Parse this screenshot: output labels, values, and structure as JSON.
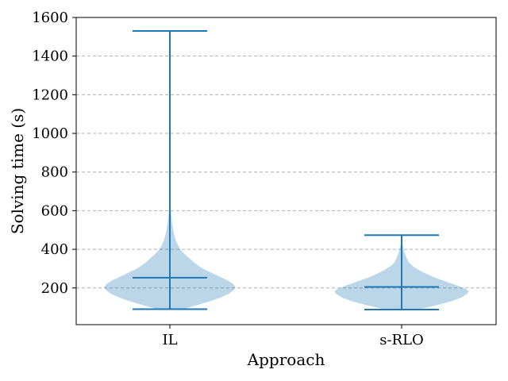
{
  "chart_data": {
    "type": "violin",
    "title": "",
    "xlabel": "Approach",
    "ylabel": "Solving time (s)",
    "ylim": [
      10,
      1600
    ],
    "yticks": [
      200,
      400,
      600,
      800,
      1000,
      1200,
      1400,
      1600
    ],
    "grid": "y-dashed",
    "categories": [
      "IL",
      "s-RLO"
    ],
    "colors": {
      "line": "#1f77b4",
      "fill": "#1f77b4",
      "grid": "#b0b0b0"
    },
    "violins": [
      {
        "name": "IL",
        "min": 90,
        "max": 1530,
        "mean": 253,
        "density": [
          [
            90,
            0.17
          ],
          [
            110,
            0.35
          ],
          [
            130,
            0.53
          ],
          [
            150,
            0.68
          ],
          [
            170,
            0.79
          ],
          [
            190,
            0.86
          ],
          [
            205,
            0.88
          ],
          [
            220,
            0.85
          ],
          [
            240,
            0.77
          ],
          [
            260,
            0.66
          ],
          [
            280,
            0.55
          ],
          [
            300,
            0.44
          ],
          [
            330,
            0.33
          ],
          [
            360,
            0.24
          ],
          [
            390,
            0.16
          ],
          [
            420,
            0.11
          ],
          [
            450,
            0.075
          ],
          [
            480,
            0.055
          ],
          [
            510,
            0.04
          ],
          [
            540,
            0.028
          ],
          [
            570,
            0.02
          ],
          [
            600,
            0.012
          ],
          [
            630,
            0.007
          ],
          [
            660,
            0.004
          ],
          [
            700,
            0.002
          ],
          [
            800,
            0.0012
          ],
          [
            1000,
            0.0008
          ],
          [
            1200,
            0.0005
          ],
          [
            1530,
            0.0003
          ]
        ]
      },
      {
        "name": "s-RLO",
        "min": 88,
        "max": 473,
        "mean": 205,
        "density": [
          [
            88,
            0.22
          ],
          [
            110,
            0.46
          ],
          [
            130,
            0.66
          ],
          [
            150,
            0.8
          ],
          [
            170,
            0.88
          ],
          [
            182,
            0.9
          ],
          [
            195,
            0.86
          ],
          [
            210,
            0.76
          ],
          [
            230,
            0.62
          ],
          [
            250,
            0.47
          ],
          [
            270,
            0.35
          ],
          [
            290,
            0.24
          ],
          [
            310,
            0.16
          ],
          [
            330,
            0.1
          ],
          [
            350,
            0.072
          ],
          [
            370,
            0.052
          ],
          [
            390,
            0.034
          ],
          [
            410,
            0.02
          ],
          [
            430,
            0.01
          ],
          [
            450,
            0.005
          ],
          [
            473,
            0.002
          ]
        ]
      }
    ]
  }
}
